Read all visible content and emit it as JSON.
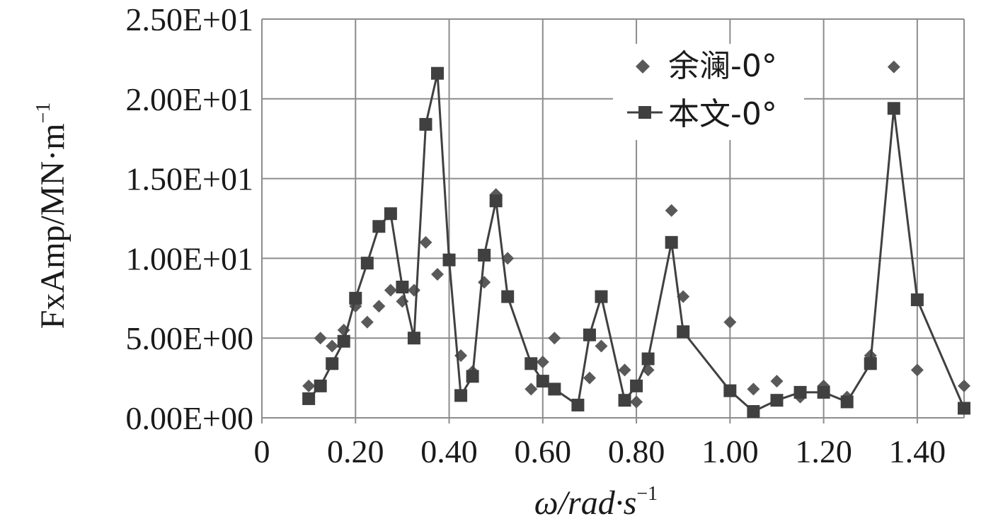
{
  "chart_data": {
    "type": "scatter",
    "xlabel": {
      "main": "ω/rad·s",
      "sup": "−1"
    },
    "ylabel": {
      "main": "FxAmp/MN·m",
      "sup": "−1"
    },
    "xlim": [
      0,
      1.5
    ],
    "ylim": [
      0,
      25
    ],
    "x_ticks": [
      0,
      0.2,
      0.4,
      0.6,
      0.8,
      1.0,
      1.2,
      1.4
    ],
    "x_tick_labels": [
      "0",
      "0.20",
      "0.40",
      "0.60",
      "0.80",
      "1.00",
      "1.20",
      "1.40"
    ],
    "y_ticks": [
      0,
      5,
      10,
      15,
      20,
      25
    ],
    "y_tick_labels": [
      "0.00E+00",
      "5.00E+00",
      "1.00E+01",
      "1.50E+01",
      "2.00E+01",
      "2.50E+01"
    ],
    "grid": true,
    "legend_position": "top-right",
    "series": [
      {
        "name": "余澜-0°",
        "marker": "diamond",
        "line": false,
        "color": "#595959",
        "points": [
          [
            0.1,
            2.0
          ],
          [
            0.125,
            5.0
          ],
          [
            0.15,
            4.5
          ],
          [
            0.175,
            5.5
          ],
          [
            0.2,
            7.0
          ],
          [
            0.225,
            6.0
          ],
          [
            0.25,
            7.0
          ],
          [
            0.275,
            8.0
          ],
          [
            0.3,
            7.3
          ],
          [
            0.325,
            8.0
          ],
          [
            0.35,
            11.0
          ],
          [
            0.375,
            9.0
          ],
          [
            0.4,
            10.0
          ],
          [
            0.425,
            3.9
          ],
          [
            0.45,
            2.9
          ],
          [
            0.475,
            8.5
          ],
          [
            0.5,
            14.0
          ],
          [
            0.525,
            10.0
          ],
          [
            0.575,
            1.8
          ],
          [
            0.6,
            3.5
          ],
          [
            0.625,
            5.0
          ],
          [
            0.7,
            2.5
          ],
          [
            0.725,
            4.5
          ],
          [
            0.775,
            3.0
          ],
          [
            0.8,
            1.0
          ],
          [
            0.825,
            3.0
          ],
          [
            0.875,
            13.0
          ],
          [
            0.9,
            7.6
          ],
          [
            1.0,
            6.0
          ],
          [
            1.05,
            1.8
          ],
          [
            1.1,
            2.3
          ],
          [
            1.15,
            1.3
          ],
          [
            1.2,
            2.0
          ],
          [
            1.25,
            1.3
          ],
          [
            1.3,
            3.9
          ],
          [
            1.35,
            22.0
          ],
          [
            1.4,
            3.0
          ],
          [
            1.5,
            2.0
          ]
        ]
      },
      {
        "name": "本文-0°",
        "marker": "square",
        "line": true,
        "color": "#404040",
        "points": [
          [
            0.1,
            1.2
          ],
          [
            0.125,
            2.0
          ],
          [
            0.15,
            3.4
          ],
          [
            0.175,
            4.8
          ],
          [
            0.2,
            7.5
          ],
          [
            0.225,
            9.7
          ],
          [
            0.25,
            12.0
          ],
          [
            0.275,
            12.8
          ],
          [
            0.3,
            8.2
          ],
          [
            0.325,
            5.0
          ],
          [
            0.35,
            18.4
          ],
          [
            0.375,
            21.6
          ],
          [
            0.4,
            9.9
          ],
          [
            0.425,
            1.4
          ],
          [
            0.45,
            2.6
          ],
          [
            0.475,
            10.2
          ],
          [
            0.5,
            13.6
          ],
          [
            0.525,
            7.6
          ],
          [
            0.575,
            3.4
          ],
          [
            0.6,
            2.3
          ],
          [
            0.625,
            1.8
          ],
          [
            0.675,
            0.8
          ],
          [
            0.7,
            5.2
          ],
          [
            0.725,
            7.6
          ],
          [
            0.775,
            1.1
          ],
          [
            0.8,
            2.0
          ],
          [
            0.825,
            3.7
          ],
          [
            0.875,
            11.0
          ],
          [
            0.9,
            5.4
          ],
          [
            1.0,
            1.7
          ],
          [
            1.05,
            0.4
          ],
          [
            1.1,
            1.1
          ],
          [
            1.15,
            1.6
          ],
          [
            1.2,
            1.6
          ],
          [
            1.25,
            1.0
          ],
          [
            1.3,
            3.4
          ],
          [
            1.35,
            19.4
          ],
          [
            1.4,
            7.4
          ],
          [
            1.5,
            0.6
          ]
        ]
      }
    ]
  }
}
